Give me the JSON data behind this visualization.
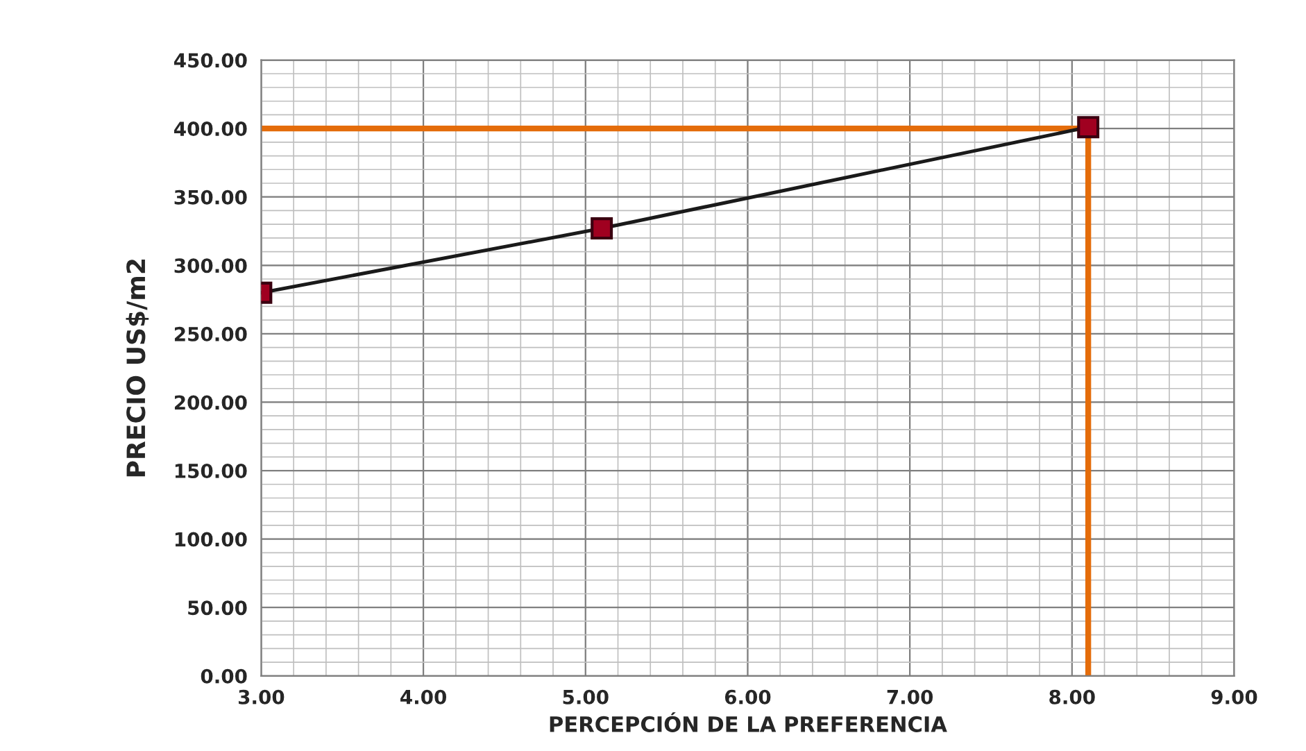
{
  "chart_data": {
    "type": "line",
    "xlabel": "PERCEPCIÓN DE LA PREFERENCIA",
    "ylabel": "PRECIO US$/m2",
    "x": [
      3.0,
      5.1,
      8.1
    ],
    "series": [
      {
        "color": "#1a1a1a",
        "values": [
          280,
          327,
          401
        ]
      }
    ],
    "marker": "square",
    "line_style": "solid",
    "grid": true,
    "xlim": [
      3,
      9
    ],
    "xticks": [
      {
        "value": 3,
        "label": "3.00"
      },
      {
        "value": 4,
        "label": "4.00"
      },
      {
        "value": 5,
        "label": "5.00"
      },
      {
        "value": 6,
        "label": "6.00"
      },
      {
        "value": 7,
        "label": "7.00"
      },
      {
        "value": 8,
        "label": "8.00"
      },
      {
        "value": 9,
        "label": "9.00"
      }
    ],
    "ylim": [
      0,
      450
    ],
    "yticks": [
      {
        "value": 0,
        "label": "0.00"
      },
      {
        "value": 50,
        "label": "50.00"
      },
      {
        "value": 100,
        "label": "100.00"
      },
      {
        "value": 150,
        "label": "150.00"
      },
      {
        "value": 200,
        "label": "200.00"
      },
      {
        "value": 250,
        "label": "250.00"
      },
      {
        "value": 300,
        "label": "300.00"
      },
      {
        "value": 350,
        "label": "350.00"
      },
      {
        "value": 400,
        "label": "400.00"
      },
      {
        "value": 450,
        "label": "450.00"
      }
    ],
    "ref_lines": [
      {
        "axis": "y",
        "value": 400,
        "color": "#e46c0a"
      },
      {
        "axis": "x",
        "value": 8.1,
        "color": "#e46c0a"
      }
    ]
  }
}
